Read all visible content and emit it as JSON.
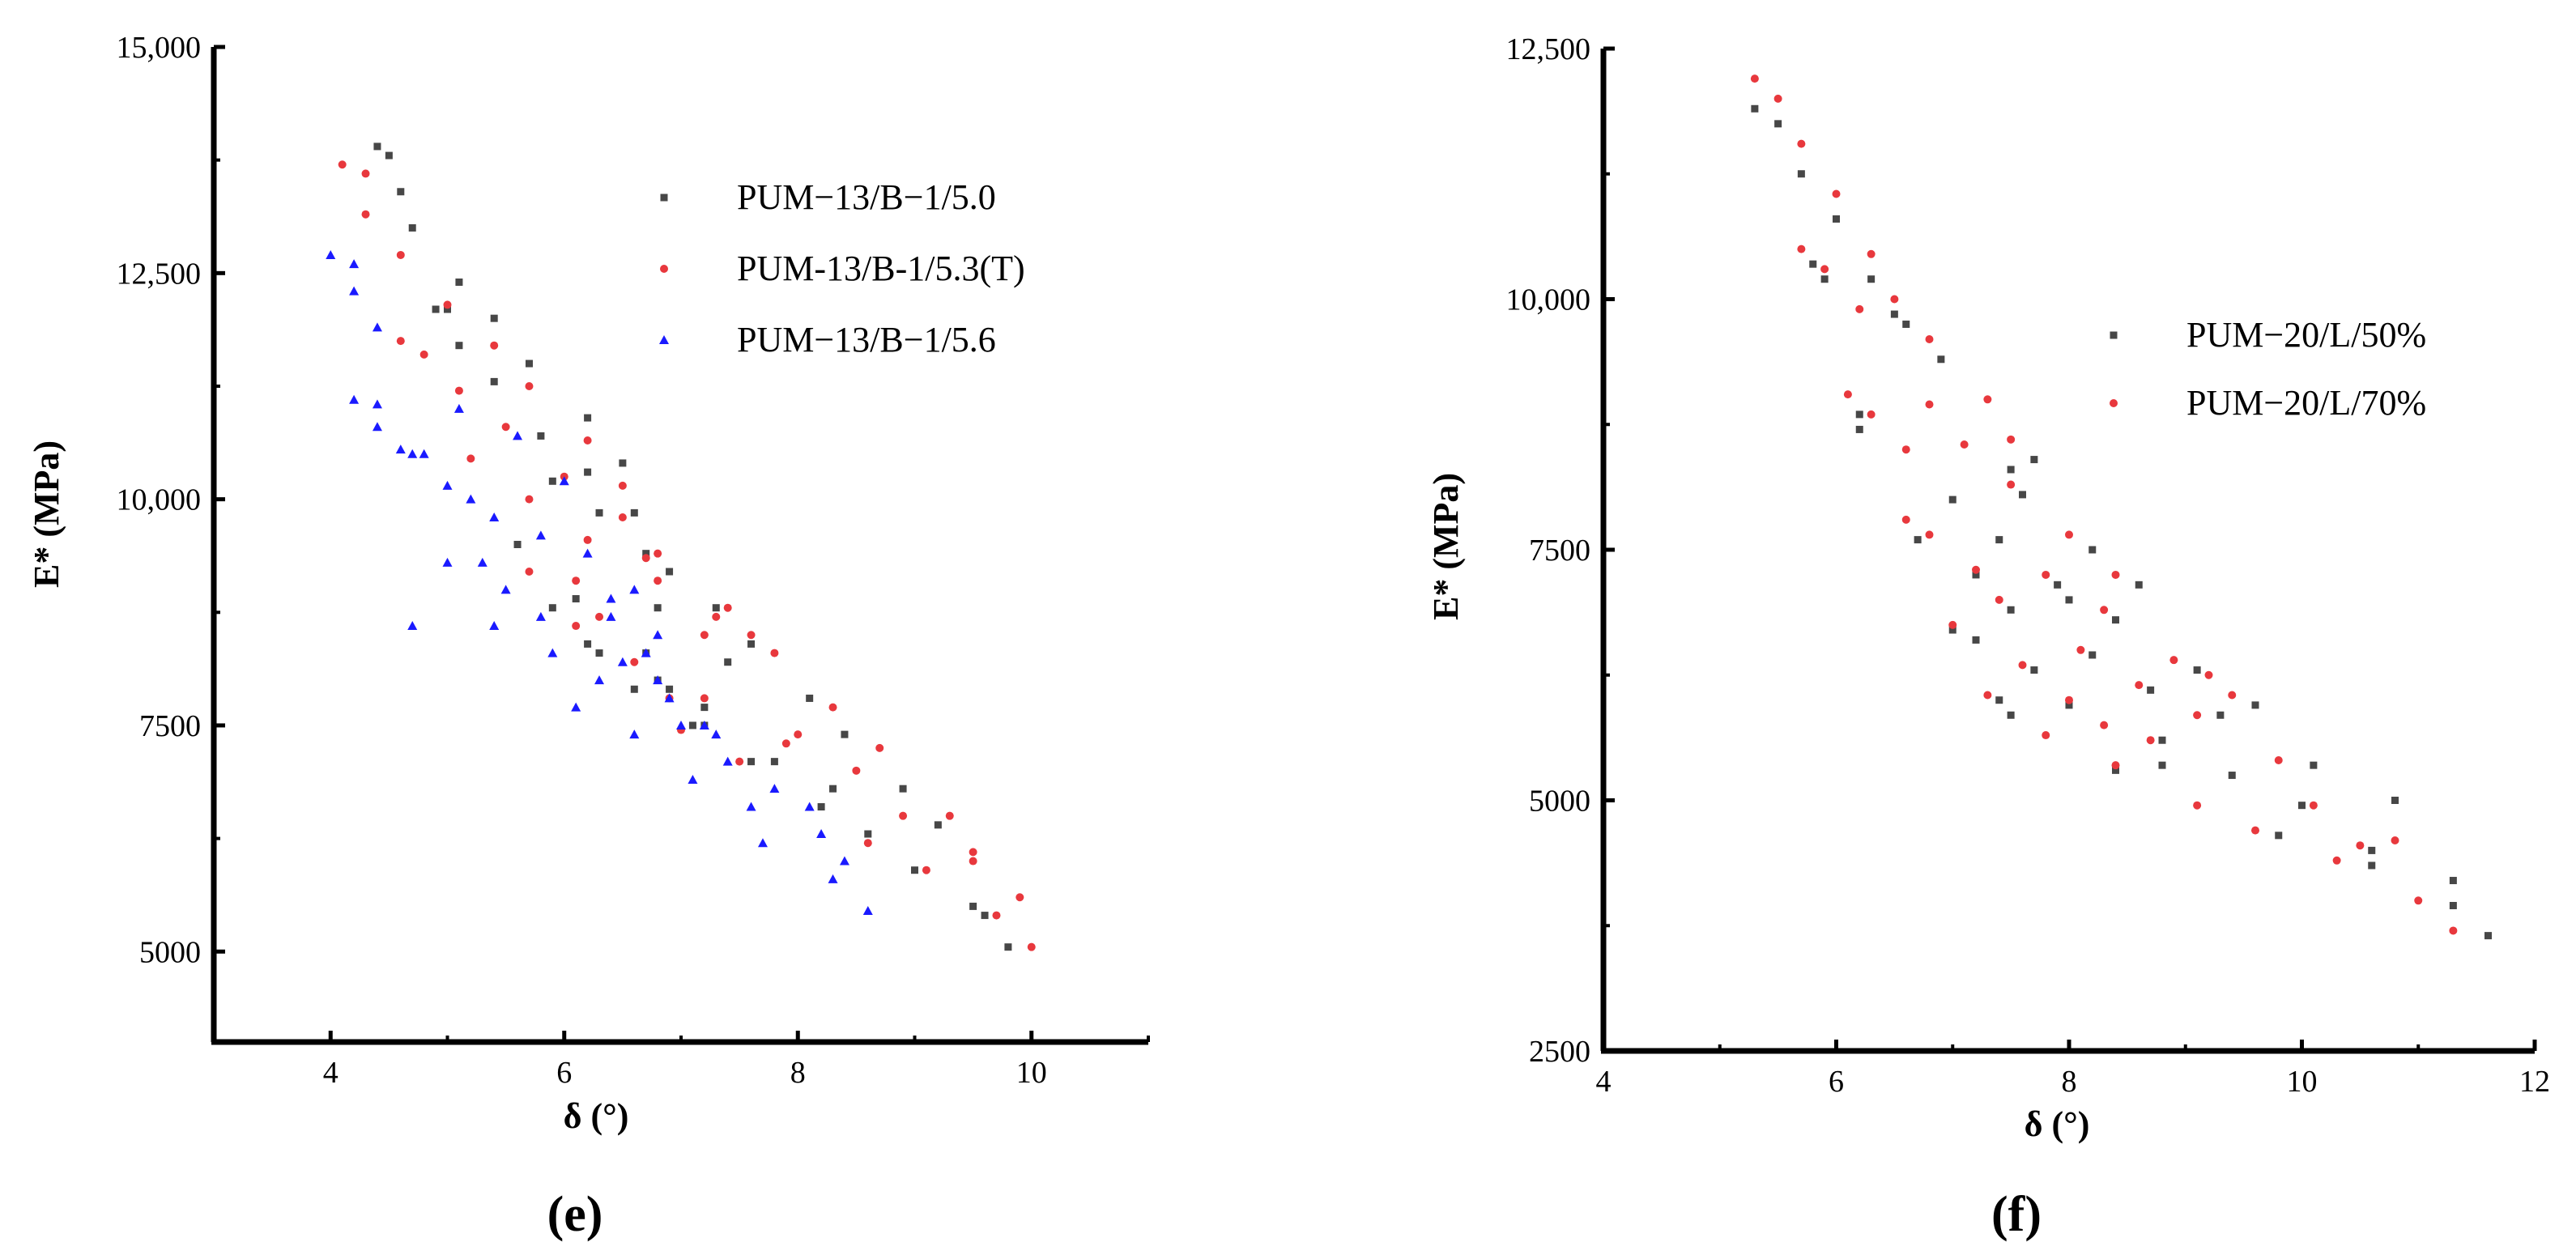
{
  "colors": {
    "series_black": "#474747",
    "series_red": "#e8383d",
    "series_blue": "#1a1aff",
    "axis": "#000000"
  },
  "chart_data": [
    {
      "type": "scatter",
      "panel_label": "e",
      "xlabel": "δ (°)",
      "ylabel": "E* (MPa)",
      "xlim": [
        3,
        11
      ],
      "ylim": [
        4000,
        15000
      ],
      "xticks": [
        4,
        6,
        8,
        10
      ],
      "xtick_labels": [
        "4",
        "6",
        "8",
        "10"
      ],
      "yticks": [
        5000,
        7500,
        10000,
        12500,
        15000
      ],
      "ytick_labels": [
        "5000",
        "7500",
        "10,000",
        "12,500",
        "15,000"
      ],
      "legend_position": "top-right",
      "series": [
        {
          "name": "PUM−13/B−1/5.0",
          "marker": "square",
          "color": "#474747",
          "x": [
            4.4,
            4.5,
            4.6,
            4.7,
            4.9,
            5.0,
            5.1,
            5.1,
            5.4,
            5.4,
            5.7,
            5.8,
            5.9,
            6.2,
            6.2,
            6.3,
            6.5,
            6.6,
            6.7,
            6.8,
            6.9,
            5.6,
            5.9,
            6.1,
            6.2,
            6.3,
            6.6,
            6.8,
            7.1,
            7.2,
            7.3,
            7.4,
            7.6,
            7.8,
            8.1,
            8.2,
            8.3,
            8.4,
            8.6,
            8.9,
            9.0,
            9.2,
            9.5,
            9.6,
            9.8,
            6.7,
            6.9,
            7.2,
            7.6
          ],
          "y": [
            13900,
            13800,
            13400,
            13000,
            12100,
            12100,
            12400,
            11700,
            11300,
            12000,
            11500,
            10700,
            10200,
            10900,
            10300,
            9850,
            10400,
            9850,
            9400,
            8800,
            9200,
            9500,
            8800,
            8900,
            8400,
            8300,
            7900,
            8000,
            7500,
            7700,
            8800,
            8200,
            7100,
            7100,
            7800,
            6600,
            6800,
            7400,
            6300,
            6800,
            5900,
            6400,
            5500,
            5400,
            5050,
            8300,
            7900,
            7500,
            8400
          ]
        },
        {
          "name": "PUM-13/B-1/5.3(T)",
          "marker": "circle",
          "color": "#e8383d",
          "x": [
            4.1,
            4.3,
            4.3,
            4.6,
            4.6,
            4.8,
            5.0,
            5.1,
            5.2,
            5.4,
            5.5,
            5.7,
            5.7,
            6.0,
            6.1,
            6.2,
            6.2,
            6.5,
            6.5,
            6.7,
            6.8,
            6.8,
            7.0,
            7.2,
            7.3,
            7.4,
            7.5,
            7.6,
            7.8,
            7.9,
            8.0,
            8.3,
            8.5,
            8.6,
            8.7,
            8.9,
            9.1,
            9.3,
            9.5,
            9.5,
            9.7,
            9.9,
            10.0,
            5.7,
            6.1,
            6.3,
            6.6,
            6.9,
            7.2
          ],
          "y": [
            13700,
            13600,
            13150,
            12700,
            11750,
            11600,
            12150,
            11200,
            10450,
            11700,
            10800,
            11250,
            10000,
            10250,
            9100,
            10650,
            9550,
            10150,
            9800,
            9350,
            9400,
            9100,
            7450,
            7800,
            8700,
            8800,
            7100,
            8500,
            8300,
            7300,
            7400,
            7700,
            7000,
            6200,
            7250,
            6500,
            5900,
            6500,
            6100,
            6000,
            5400,
            5600,
            5050,
            9200,
            8600,
            8700,
            8200,
            7800,
            8500
          ]
        },
        {
          "name": "PUM−13/B−1/5.6",
          "marker": "triangle",
          "color": "#1a1aff",
          "x": [
            4.0,
            4.2,
            4.2,
            4.4,
            4.2,
            4.4,
            4.4,
            4.6,
            4.7,
            4.8,
            5.0,
            5.1,
            5.2,
            5.0,
            5.3,
            5.4,
            5.5,
            5.6,
            5.8,
            5.9,
            6.0,
            6.2,
            6.3,
            6.4,
            6.5,
            6.6,
            6.7,
            6.8,
            6.9,
            7.0,
            7.1,
            7.2,
            7.3,
            7.4,
            7.6,
            7.7,
            7.8,
            8.1,
            8.2,
            8.3,
            8.4,
            8.6,
            4.7,
            5.4,
            5.8,
            6.1,
            6.4,
            6.6,
            6.8
          ],
          "y": [
            12700,
            12600,
            12300,
            11900,
            11100,
            11050,
            10800,
            10550,
            10500,
            10500,
            10150,
            11000,
            10000,
            9300,
            9300,
            9800,
            9000,
            10700,
            9600,
            8300,
            10200,
            9400,
            8000,
            8900,
            8200,
            9000,
            8300,
            8500,
            7800,
            7500,
            6900,
            7500,
            7400,
            7100,
            6600,
            6200,
            6800,
            6600,
            6300,
            5800,
            6000,
            5450,
            8600,
            8600,
            8700,
            7700,
            8700,
            7400,
            8000
          ]
        }
      ]
    },
    {
      "type": "scatter",
      "panel_label": "f",
      "xlabel": "δ (°)",
      "ylabel": "E* (MPa)",
      "xlim": [
        4,
        12
      ],
      "ylim": [
        2500,
        12500
      ],
      "xticks": [
        4,
        6,
        8,
        10,
        12
      ],
      "xtick_labels": [
        "4",
        "6",
        "8",
        "10",
        "12"
      ],
      "yticks": [
        2500,
        5000,
        7500,
        10000,
        12500
      ],
      "ytick_labels": [
        "2500",
        "5000",
        "7500",
        "10,000",
        "12,500"
      ],
      "legend_position": "center-right",
      "series": [
        {
          "name": "PUM−20/L/50%",
          "marker": "square",
          "color": "#474747",
          "x": [
            5.3,
            5.5,
            5.7,
            6.0,
            5.8,
            5.9,
            6.2,
            6.3,
            6.5,
            6.6,
            6.9,
            7.0,
            7.2,
            7.4,
            7.7,
            7.5,
            7.6,
            7.7,
            7.0,
            7.2,
            7.5,
            8.0,
            8.2,
            8.4,
            8.6,
            8.7,
            8.2,
            8.0,
            7.4,
            7.5,
            8.8,
            9.1,
            9.3,
            9.6,
            9.8,
            10.0,
            10.1,
            10.6,
            10.8,
            11.3,
            11.3,
            11.6,
            6.2,
            6.7,
            7.9,
            8.4,
            8.8,
            9.4,
            10.6
          ],
          "y": [
            11900,
            11750,
            11250,
            10800,
            10350,
            10200,
            8850,
            10200,
            9850,
            9750,
            9400,
            8000,
            7250,
            7600,
            8400,
            8300,
            8050,
            6300,
            6700,
            6600,
            6900,
            7000,
            7500,
            6800,
            7150,
            6100,
            6450,
            5950,
            6000,
            5850,
            5600,
            6300,
            5850,
            5950,
            4650,
            4950,
            5350,
            4350,
            5000,
            4200,
            3950,
            3650,
            8700,
            7600,
            7150,
            5300,
            5350,
            5250,
            4500
          ]
        },
        {
          "name": "PUM−20/L/70%",
          "marker": "circle",
          "color": "#e8383d",
          "x": [
            5.3,
            5.5,
            5.7,
            6.0,
            5.7,
            5.9,
            6.2,
            6.3,
            6.5,
            6.8,
            6.1,
            6.3,
            6.6,
            6.8,
            7.1,
            7.3,
            7.5,
            7.5,
            6.8,
            7.0,
            7.2,
            7.4,
            7.6,
            7.8,
            8.0,
            8.1,
            8.3,
            8.4,
            8.6,
            8.9,
            9.1,
            9.2,
            9.4,
            8.0,
            8.3,
            8.7,
            8.4,
            9.1,
            9.6,
            9.8,
            10.1,
            10.3,
            10.5,
            10.8,
            11.0,
            11.3,
            6.6,
            7.3,
            7.8
          ],
          "y": [
            12200,
            12000,
            11550,
            11050,
            10500,
            10300,
            9900,
            10450,
            10000,
            9600,
            9050,
            8850,
            8500,
            8950,
            8550,
            9000,
            8600,
            8150,
            7650,
            6750,
            7300,
            7000,
            6350,
            7250,
            7650,
            6500,
            6900,
            7250,
            6150,
            6400,
            5850,
            6250,
            6050,
            6000,
            5750,
            5600,
            5350,
            4950,
            4700,
            5400,
            4950,
            4400,
            4550,
            4600,
            4000,
            3700,
            7800,
            6050,
            5650
          ]
        }
      ]
    }
  ]
}
